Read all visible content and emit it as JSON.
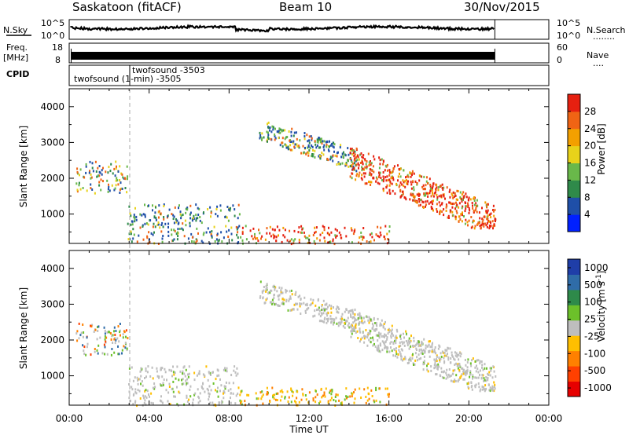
{
  "header": {
    "station": "Saskatoon (fitACF)",
    "beam": "Beam 10",
    "date": "30/Nov/2015"
  },
  "panels": {
    "nsky": {
      "label": "N.Sky",
      "left_ticks": [
        "10^5",
        "10^0"
      ],
      "right_ticks": [
        "10^5",
        "10^0"
      ],
      "right_label": "N.Search",
      "right_label_dots": "........"
    },
    "freq": {
      "label_line1": "Freq.",
      "label_line2": "[MHz]",
      "left_ticks": [
        "18",
        "8"
      ],
      "right_ticks": [
        "60",
        "0"
      ],
      "right_label": "Nave",
      "right_label_dots": "...."
    },
    "cpid": {
      "label": "CPID",
      "programs": [
        "twofsound -3503",
        "twofsound (1-min) -3505"
      ]
    }
  },
  "colors": {
    "power_scale": [
      "#0020ff",
      "#1f4fa8",
      "#2f8a4a",
      "#69b84a",
      "#e8d21a",
      "#f3a000",
      "#f06414",
      "#e62010"
    ],
    "velocity_scale": [
      "#1f3ea8",
      "#2f6ca8",
      "#2e8a4a",
      "#6cc02a",
      "#bebebe",
      "#ffbf00",
      "#ff8000",
      "#ff4000",
      "#e60000"
    ]
  },
  "chart_data": [
    {
      "type": "heatmap",
      "name": "power",
      "xlabel": "Time UT",
      "ylabel": "Slant Range [km]",
      "x_ticks": [
        "00:00",
        "04:00",
        "08:00",
        "12:00",
        "16:00",
        "20:00",
        "00:00"
      ],
      "x_range_hours": [
        0,
        24
      ],
      "y_ticks": [
        1000,
        2000,
        3000,
        4000
      ],
      "y_range_km": [
        180,
        4500
      ],
      "colorbar_label": "Power [dB]",
      "colorbar_ticks": [
        4,
        8,
        12,
        16,
        20,
        24,
        28
      ],
      "colorbar_range": [
        0,
        30
      ],
      "scatter_regions": [
        {
          "t0": 0.3,
          "t1": 2.9,
          "r0": 1600,
          "r1": 2500,
          "level": "mixed"
        },
        {
          "t0": 2.9,
          "t1": 8.5,
          "r0": 200,
          "r1": 1300,
          "level": "mixed"
        },
        {
          "t0": 8.5,
          "t1": 16.0,
          "r0": 200,
          "r1": 700,
          "level": "high"
        },
        {
          "t0": 9.5,
          "t1": 14.5,
          "r0": 2300,
          "r1": 3500,
          "level": "mixed"
        },
        {
          "t0": 14.0,
          "t1": 21.3,
          "r0": 700,
          "r1": 2600,
          "level": "high"
        }
      ]
    },
    {
      "type": "heatmap",
      "name": "velocity",
      "xlabel": "Time UT",
      "ylabel": "Slant Range [km]",
      "x_ticks": [
        "00:00",
        "04:00",
        "08:00",
        "12:00",
        "16:00",
        "20:00",
        "00:00"
      ],
      "x_range_hours": [
        0,
        24
      ],
      "y_ticks": [
        1000,
        2000,
        3000,
        4000
      ],
      "y_range_km": [
        180,
        4500
      ],
      "colorbar_label": "Velocity [m s",
      "colorbar_label_sup": "-1",
      "colorbar_ticks": [
        "1000",
        "500",
        "100",
        "25",
        "-25",
        "-100",
        "-500",
        "-1000"
      ],
      "scatter_regions": [
        {
          "t0": 0.3,
          "t1": 2.9,
          "r0": 1600,
          "r1": 2500,
          "level": "mixed"
        },
        {
          "t0": 2.9,
          "t1": 8.5,
          "r0": 200,
          "r1": 1300,
          "level": "ground"
        },
        {
          "t0": 8.5,
          "t1": 16.0,
          "r0": 200,
          "r1": 700,
          "level": "away"
        },
        {
          "t0": 9.5,
          "t1": 14.5,
          "r0": 2300,
          "r1": 3500,
          "level": "ground"
        },
        {
          "t0": 14.0,
          "t1": 21.3,
          "r0": 700,
          "r1": 2600,
          "level": "ground"
        }
      ]
    }
  ]
}
